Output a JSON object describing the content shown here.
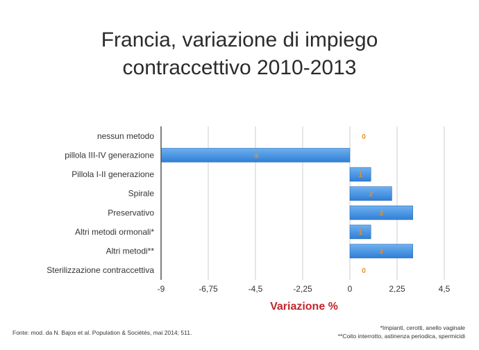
{
  "title_lines": [
    "Francia, variazione di impiego",
    "contraccettivo 2010-2013"
  ],
  "footer": {
    "source": "Fonte: mod. da N. Bajos et al. Population & Sociétés, mai 2014; 511.",
    "note1": "*Impianti, cerotti, anello vaginale",
    "note2": "**Coito interrotto, astinenza periodica, spermicidi"
  },
  "colors": {
    "bar": "#2f7fd6",
    "bar_light": "#6fb0f0",
    "value_label": "#e8902a",
    "xlabel": "#c0262d",
    "axis": "#555555",
    "grid": "#cccccc",
    "text": "#333333"
  },
  "chart_data": {
    "type": "bar",
    "orientation": "horizontal",
    "title": "Francia, variazione di impiego contraccettivo 2010-2013",
    "categories": [
      "nessun metodo",
      "pillola III-IV generazione",
      "Pillola I-II generazione",
      "Spirale",
      "Preservativo",
      "Altri metodi ormonali*",
      "Altri metodi**",
      "Sterilizzazione contraccettiva"
    ],
    "values": [
      0,
      -9,
      1,
      2,
      3,
      1,
      3,
      0
    ],
    "xlabel": "Variazione %",
    "xlim": [
      -9,
      4.5
    ],
    "xticks": [
      -9,
      -6.75,
      -4.5,
      -2.25,
      0,
      2.25,
      4.5
    ],
    "xtick_labels": [
      "-9",
      "-6,75",
      "-4,5",
      "-2,25",
      "0",
      "2,25",
      "4,5"
    ],
    "grid": "vertical",
    "data_labels": true
  }
}
